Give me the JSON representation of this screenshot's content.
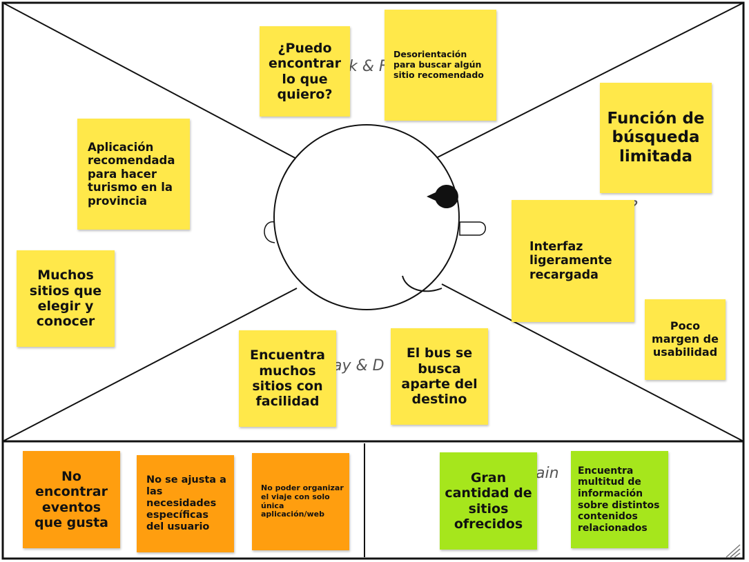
{
  "colors": {
    "sticky_yellow": "#ffe84a",
    "sticky_orange": "#ff9e0f",
    "sticky_green": "#a6e61c",
    "outline": "#111111"
  },
  "background_labels": {
    "think_feel": "k & F",
    "see": "?",
    "say_do": "ay & D",
    "gain": "ain"
  },
  "notes": {
    "puedo_encontrar": "¿Puedo encontrar lo que quiero?",
    "desorientacion": "Desorientación para buscar algún sitio recomendado",
    "funcion_busqueda": "Función de búsqueda limitada",
    "aplicacion_recomendada": "Aplicación recomendada para hacer turismo en la provincia",
    "interfaz": "Interfaz ligeramente recargada",
    "muchos_sitios": "Muchos sitios que elegir y conocer",
    "poco_margen": "Poco margen de usabilidad",
    "encuentra_muchos": "Encuentra muchos sitios con facilidad",
    "bus": "El bus se busca aparte del destino",
    "no_encontrar_eventos": "No encontrar eventos que gusta",
    "no_se_ajusta": "No se ajusta a las necesidades específicas del usuario",
    "no_poder_organizar": "No poder organizar el viaje con solo única aplicación/web",
    "gran_cantidad": "Gran cantidad de sitios ofrecidos",
    "encuentra_multitud": "Encuentra multitud de información sobre distintos contenidos relacionados"
  }
}
